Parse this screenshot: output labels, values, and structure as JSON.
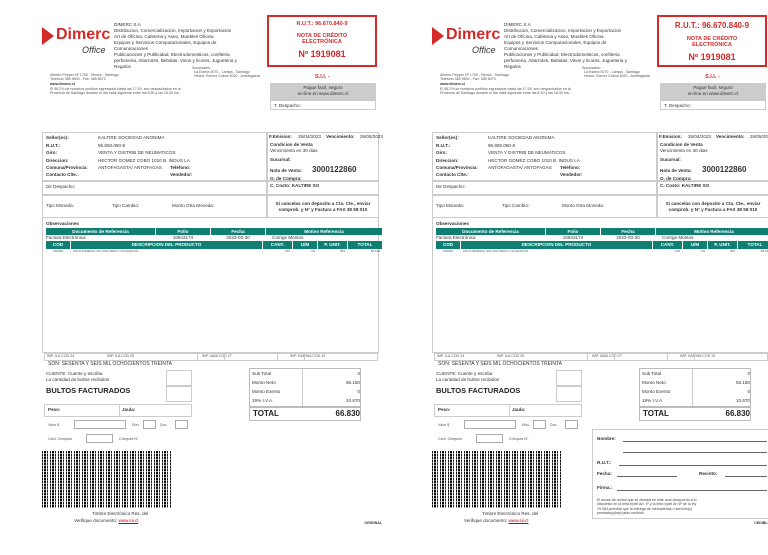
{
  "copies": [
    {
      "label": "ORIGINAL"
    },
    {
      "label": "CEDIBLE"
    }
  ],
  "issuer": {
    "logo_text": "Dimerc",
    "logo_sub": "Office",
    "name": "DIMERC S.A",
    "activities": [
      "Distribucion, Comercializacion, Importacion y Exportacion",
      "Art de Oficina, Cafeteria y Aseo, Muebles Oficina",
      "Equipos y Servicios Computacionales, Equipos de",
      "Comunicaciones",
      "Publicaciones y Publicidad, Electrodomesticos, confiteria",
      "perfumeria, Abarrotes, Bebidas, Vinos y licores, Jugueteria y",
      "Regalos"
    ],
    "branches_label": "Sucursales:",
    "branches": [
      "La Estera 0070 - Lampa - Santiago",
      "Hector Gomez Cobos 4020 - Antofagasta"
    ],
    "address": "Alberto Pepper Nº 1759 - Renca - Santiago",
    "phone": "Telefono 385 9800 - Fax: 385 8070",
    "web": "www.dimerc.cl",
    "dispatch_note_1": "El 96,2% de nuestros pedidos ingresados hasta las 17:00, son despachados en la",
    "dispatch_note_2": "Provincia de Santiago durante el dia habil siguiente entre las 8:30 y las 18:30 hrs."
  },
  "doc": {
    "rut": "R.U.T.: 96.670.840-9",
    "type_1": "NOTA DE CRÉDITO",
    "type_2": "ELECTRÓNICA",
    "number": "Nº 1919081",
    "sii": "S.I.I. -",
    "pay_1": "Pague facil, seguro",
    "pay_2": "on-line en www.dimerc.cl",
    "t_despacho": "T. Despacho:"
  },
  "customer": {
    "senores_label": "Señor(es):",
    "senores": "KALTIRE SOCIEDAD ANONIMA",
    "rut_label": "R.U.T.:",
    "rut": "96.850.050-8",
    "giro_label": "Giro:",
    "giro": "VENTA Y DISTRIB DE NEUMATICOS",
    "direccion_label": "Direccion:",
    "direccion": "HECTOR GOMEZ COBO 1010 B. INDUS LA",
    "comuna_label": "Comuna/Provincia:",
    "comuna": "ANTOFAGASTA/ ANTOFAGAS",
    "telefono_label": "Teléfono:",
    "contacto_label": "Contacto Clte.:",
    "vendedor_label": "Vendedor:",
    "dir_despacho_label": "Dir Despacho:",
    "tipo_moneda_label": "Tipo Moneda:",
    "tipo_cambio_label": "Tipo Cambio:",
    "monto_otra_label": "Monto Otra Moneda:"
  },
  "terms": {
    "emision_label": "F.Emision:",
    "emision": "26/04/2023",
    "vencimiento_label": "Vencimiento:",
    "vencimiento": "26/05/2023",
    "condicion_label": "Condicion de Venta",
    "condicion": "Vencimiento en 30 dias",
    "sucursal_label": "Sucursal:",
    "nota_venta_label": "Nota de Venta:",
    "nota_venta": "3000122860",
    "oc_label": "O. de Compra:",
    "ccosto_label": "C. Costo:",
    "ccosto": "KALTIRE SO",
    "deposit_1": "Si cancelas con deposito a Cta. Cte., enviar",
    "deposit_2": "comprob. y N° y Factura a FAX 38 58 010"
  },
  "observaciones_label": "Observaciones",
  "reference": {
    "headers": [
      "Documento de Referencia",
      "Folio",
      "Fecha",
      "Motivo Referencia"
    ],
    "row": [
      "Factura Electrónica",
      "10643174",
      "2023-03-30",
      "Corrige Montos"
    ]
  },
  "products": {
    "headers": [
      "COD",
      "DESCRIPCION DEL PRODUCTO",
      "CANT.",
      "U/M",
      "P. UNIT.",
      "TOTAL"
    ],
    "rows": [
      [
        "100000",
        "AGUA MINERAL SIN GAS 500CC CACHANTUN",
        "160",
        "UN",
        "351",
        "56.160"
      ]
    ]
  },
  "taxes": [
    "IMP. ILA COD 24",
    "IMP. ILA COD 25",
    "IMP. IABA COD 27",
    "IMP. HARINA COD 19"
  ],
  "son": "SON: SESENTA Y SEIS MIL OCHOCIENTOS TREINTA",
  "bultos": {
    "line1": "CLIENTE: Cuente y escriba",
    "line2": "La cantidad de bultos recibidos",
    "title": "BULTOS FACTURADOS"
  },
  "peso_label": "Peso:",
  "jaula_label": "Jaula:",
  "valor_label": "Valor $",
  "efec_label": "Efec.",
  "doc_label": "Doc.",
  "cant_cheques_label": "Cant. Cheques",
  "cheques_label": "Cheques N°",
  "totals": {
    "rows": [
      [
        "Sub Total",
        "0"
      ],
      [
        "Monto Neto",
        "56.160"
      ],
      [
        "Monto Exento",
        "0"
      ],
      [
        "19% I.V.A.",
        "10.670"
      ]
    ],
    "total_label": "TOTAL",
    "total": "66.830"
  },
  "timbre_1": "Timbre Electrónico Res. del",
  "timbre_2": "Verifique documento:",
  "timbre_link": "www.sii.cl",
  "receipt": {
    "nombre": "Nombre:",
    "rut": "R.U.T.:",
    "fecha": "Fecha:",
    "recinto": "Recinto:",
    "firma": "Firma.:",
    "legal": [
      "El acuse de recibo que se declara en este acto,deacuerdo a lo",
      "dispuesto en la letra b)del Art. 4º,y la letra c)del Art.5º de la ley",
      "19.983,acredita que la entrega de mercaderias o servicio(s)",
      "prestado(s)ha(n)sido recibido"
    ]
  }
}
